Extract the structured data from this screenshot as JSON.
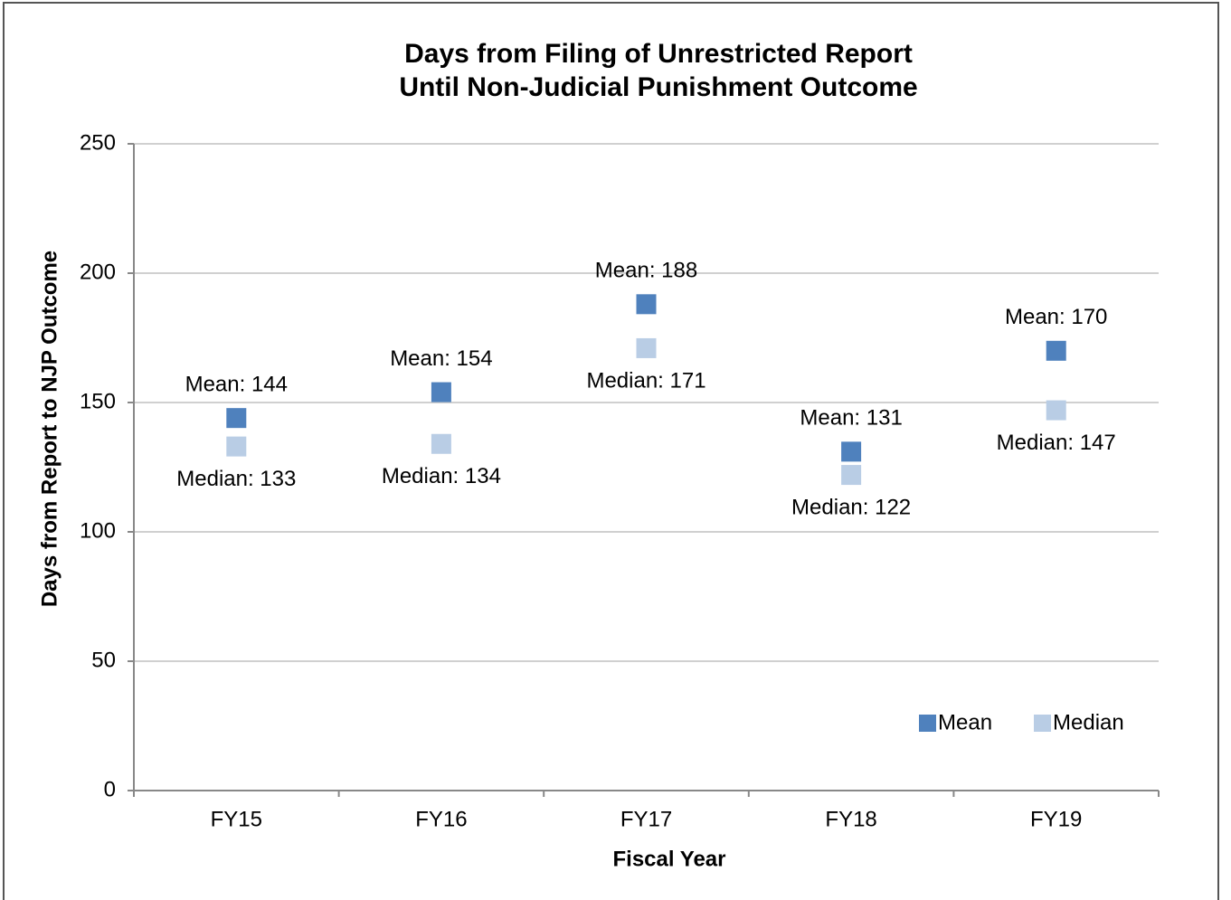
{
  "chart_data": {
    "type": "scatter",
    "title": [
      "Days from Filing of Unrestricted Report",
      "Until Non-Judicial Punishment Outcome"
    ],
    "x_label": "Fiscal Year",
    "y_label": "Days from Report to NJP Outcome",
    "categories": [
      "FY15",
      "FY16",
      "FY17",
      "FY18",
      "FY19"
    ],
    "series": [
      {
        "name": "Mean",
        "color": "#4f81bd",
        "values": [
          144,
          154,
          188,
          131,
          170
        ],
        "value_labels": [
          "Mean: 144",
          "Mean: 154",
          "Mean: 188",
          "Mean: 131",
          "Mean: 170"
        ]
      },
      {
        "name": "Median",
        "color": "#b9cde5",
        "values": [
          133,
          134,
          171,
          122,
          147
        ],
        "value_labels": [
          "Median: 133",
          "Median: 134",
          "Median: 171",
          "Median: 122",
          "Median: 147"
        ]
      }
    ],
    "ylim": [
      0,
      250
    ],
    "yticks": [
      0,
      50,
      100,
      150,
      200,
      250
    ],
    "grid": true,
    "legend": "lower right"
  }
}
